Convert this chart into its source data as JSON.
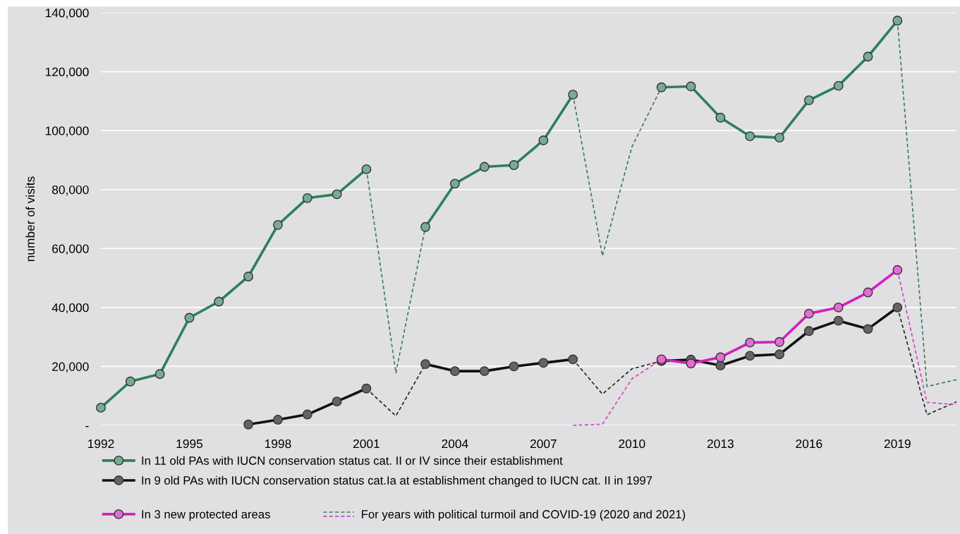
{
  "chart_data": {
    "type": "line",
    "ylabel": "number of visits",
    "x": [
      1992,
      1993,
      1994,
      1995,
      1996,
      1997,
      1998,
      1999,
      2000,
      2001,
      2002,
      2003,
      2004,
      2005,
      2006,
      2007,
      2008,
      2009,
      2010,
      2011,
      2012,
      2013,
      2014,
      2015,
      2016,
      2017,
      2018,
      2019,
      2020,
      2021
    ],
    "series": [
      {
        "name": "In 11 old PAs with IUCN conservation status cat. II or IV since their establishment",
        "color": "#2e8059",
        "marker": "circle",
        "line_style": "solid",
        "values": [
          6000,
          14900,
          17400,
          36500,
          42000,
          50500,
          68000,
          77100,
          78400,
          86900,
          null,
          67300,
          82000,
          87700,
          88300,
          96700,
          112200,
          null,
          null,
          114700,
          115000,
          104400,
          98100,
          97600,
          110300,
          115200,
          125100,
          137300,
          null,
          null
        ]
      },
      {
        "name": "In 9 old PAs with IUCN conservation status cat.Ia at establishment changed to IUCN cat. II in 1997",
        "color": "#111111",
        "marker": "circle",
        "line_style": "solid",
        "values": [
          null,
          null,
          null,
          null,
          null,
          300,
          1900,
          3700,
          8100,
          12500,
          null,
          20800,
          18400,
          18400,
          20000,
          21200,
          22400,
          null,
          null,
          21800,
          22300,
          20300,
          23600,
          24100,
          32000,
          35500,
          32700,
          40000,
          null,
          null
        ]
      },
      {
        "name": "In 3 new protected areas",
        "color": "#d41fbf",
        "marker": "circle",
        "line_style": "solid",
        "values": [
          null,
          null,
          null,
          null,
          null,
          null,
          null,
          null,
          null,
          null,
          null,
          null,
          null,
          null,
          null,
          null,
          null,
          null,
          null,
          22400,
          21000,
          23100,
          28100,
          28300,
          37900,
          40000,
          45100,
          52700,
          null,
          null
        ]
      },
      {
        "name": "For years with political turmoil and COVID-19 (2020 and 2021)",
        "color": "#3d7a62",
        "line_style": "dashed",
        "values": [
          null,
          null,
          null,
          null,
          null,
          null,
          null,
          null,
          null,
          86900,
          17800,
          67300,
          null,
          null,
          null,
          null,
          112200,
          57500,
          94500,
          114700,
          null,
          null,
          null,
          null,
          null,
          null,
          null,
          137300,
          13200,
          15500
        ]
      },
      {
        "color": "#262626",
        "line_style": "dashed",
        "values": [
          null,
          null,
          null,
          null,
          null,
          null,
          null,
          null,
          null,
          12500,
          3200,
          20800,
          null,
          null,
          null,
          null,
          22400,
          10600,
          19200,
          21800,
          null,
          null,
          null,
          null,
          null,
          null,
          null,
          40000,
          3600,
          8000
        ]
      },
      {
        "color": "#d640c4",
        "line_style": "dashed",
        "values": [
          null,
          null,
          null,
          null,
          null,
          null,
          null,
          null,
          null,
          null,
          null,
          null,
          null,
          null,
          null,
          null,
          0,
          400,
          15800,
          22400,
          null,
          null,
          null,
          null,
          null,
          null,
          null,
          52700,
          7800,
          7000
        ]
      }
    ],
    "xlim": [
      1992,
      2021
    ],
    "xticks": [
      1992,
      1995,
      1998,
      2001,
      2004,
      2007,
      2010,
      2013,
      2016,
      2019
    ],
    "ylim": [
      0,
      140000
    ],
    "yticks": [
      {
        "value": 0,
        "label": "-"
      },
      {
        "value": 20000,
        "label": "20,000"
      },
      {
        "value": 40000,
        "label": "40,000"
      },
      {
        "value": 60000,
        "label": "60,000"
      },
      {
        "value": 80000,
        "label": "80,000"
      },
      {
        "value": 100000,
        "label": "100,000"
      },
      {
        "value": 120000,
        "label": "120,000"
      },
      {
        "value": 140000,
        "label": "140,000"
      }
    ],
    "grid": "y",
    "legend": "bottom"
  }
}
